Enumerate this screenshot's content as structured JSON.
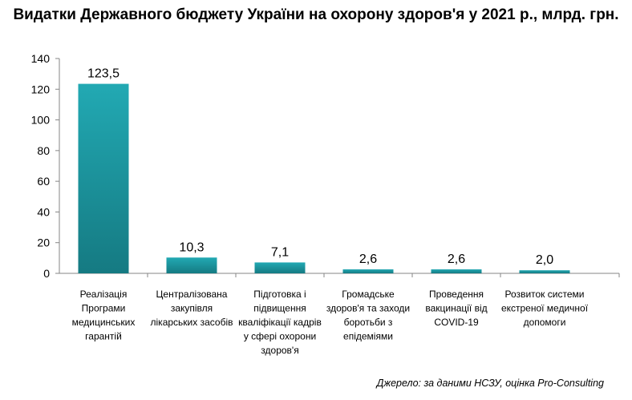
{
  "chart_data": {
    "type": "bar",
    "title": "Видатки Державного бюджету України на охорону здоров'я у 2021 р., млрд. грн.",
    "categories": [
      [
        "Реалізація",
        "Програми",
        "медицинських",
        "гарантій"
      ],
      [
        "Централізована",
        "закупівля",
        "лікарських засобів"
      ],
      [
        "Підготовка і",
        "підвищення",
        "кваліфікації кадрів",
        "у сфері охорони",
        "здоров'я"
      ],
      [
        "Громадське",
        "здоров'я та заходи",
        "боротьби з",
        "епідеміями"
      ],
      [
        "Проведення",
        "вакцинації від",
        "COVID-19"
      ],
      [
        "Розвиток системи",
        "екстреної медичної",
        "допомоги"
      ]
    ],
    "values": [
      123.5,
      10.3,
      7.1,
      2.6,
      2.6,
      2.0
    ],
    "value_labels": [
      "123,5",
      "10,3",
      "7,1",
      "2,6",
      "2,6",
      "2,0"
    ],
    "ylim": [
      0,
      140
    ],
    "yticks": [
      0,
      20,
      40,
      60,
      80,
      100,
      120,
      140
    ],
    "grid": false,
    "bar_color_top": "#22a9b3",
    "bar_color_bottom": "#157a82",
    "source": "Джерело: за даними НСЗУ, оцінка Pro-Consulting"
  }
}
